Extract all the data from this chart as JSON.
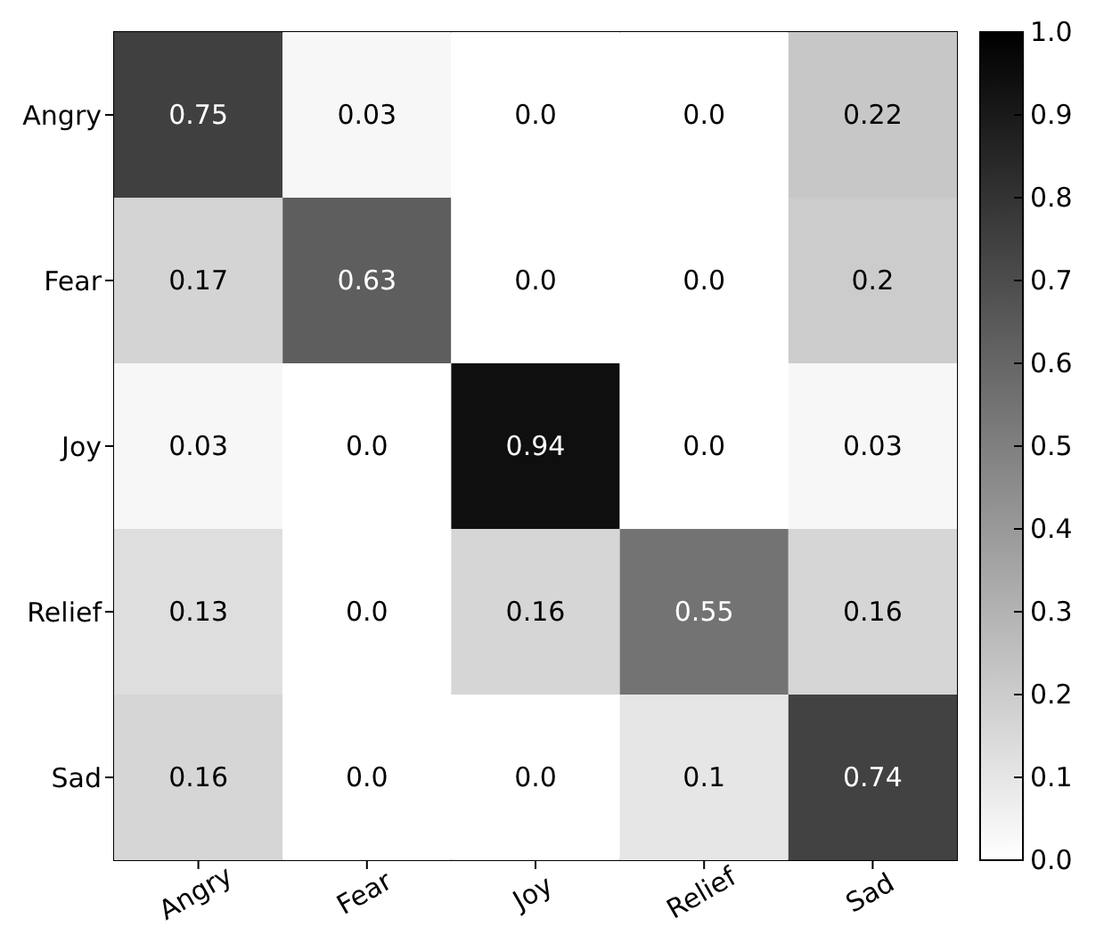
{
  "chart_data": {
    "type": "heatmap",
    "categories": [
      "Angry",
      "Fear",
      "Joy",
      "Relief",
      "Sad"
    ],
    "y_categories": [
      "Angry",
      "Fear",
      "Joy",
      "Relief",
      "Sad"
    ],
    "cells": [
      [
        0.75,
        0.03,
        0,
        0,
        0.22
      ],
      [
        0.17,
        0.63,
        0,
        0,
        0.2
      ],
      [
        0.03,
        0,
        0.94,
        0,
        0.03
      ],
      [
        0.13,
        0,
        0.16,
        0.55,
        0.16
      ],
      [
        0.16,
        0,
        0,
        0.1,
        0.74
      ]
    ],
    "cell_labels": [
      [
        "0.75",
        "0.03",
        "0.0",
        "0.0",
        "0.22"
      ],
      [
        "0.17",
        "0.63",
        "0.0",
        "0.0",
        "0.2"
      ],
      [
        "0.03",
        "0.0",
        "0.94",
        "0.0",
        "0.03"
      ],
      [
        "0.13",
        "0.0",
        "0.16",
        "0.55",
        "0.16"
      ],
      [
        "0.16",
        "0.0",
        "0.0",
        "0.1",
        "0.74"
      ]
    ],
    "clim": [
      0,
      1
    ],
    "cticks": [
      {
        "value": 0,
        "label": "0.0"
      },
      {
        "value": 0.1,
        "label": "0.1"
      },
      {
        "value": 0.2,
        "label": "0.2"
      },
      {
        "value": 0.3,
        "label": "0.3"
      },
      {
        "value": 0.4,
        "label": "0.4"
      },
      {
        "value": 0.5,
        "label": "0.5"
      },
      {
        "value": 0.6,
        "label": "0.6"
      },
      {
        "value": 0.7,
        "label": "0.7"
      },
      {
        "value": 0.8,
        "label": "0.8"
      },
      {
        "value": 0.9,
        "label": "0.9"
      },
      {
        "value": 1,
        "label": "1.0"
      }
    ]
  }
}
